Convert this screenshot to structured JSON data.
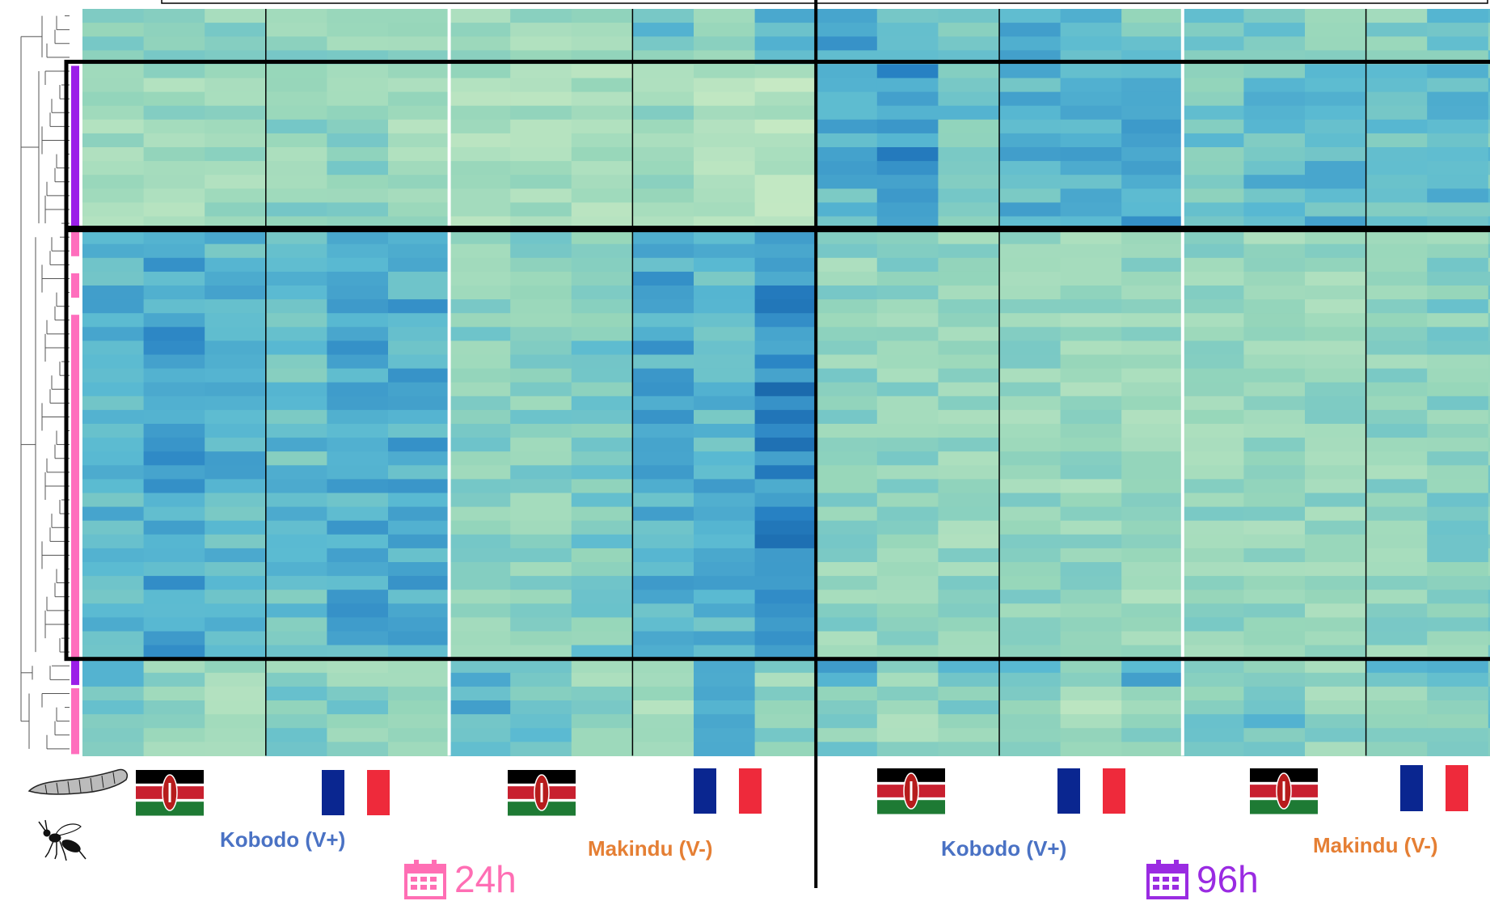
{
  "colors": {
    "kobodo": "#4a72c4",
    "makindu": "#e57f34",
    "time_24h": "#ff6eb4",
    "time_96h": "#9a2be2",
    "cluster_purple": "#9b1fe8",
    "cluster_pink": "#ff6ebd",
    "heat_low": "#bfe8bf",
    "heat_high": "#0a4a92"
  },
  "icons": {
    "host": "caterpillar-icon",
    "parasitoid": "wasp-icon",
    "flag_kenya": "kenya-flag-icon",
    "flag_france": "france-flag-icon",
    "calendar": "calendar-icon"
  },
  "labels": {
    "kobodo": "Kobodo (V+)",
    "makindu": "Makindu (V-)",
    "t24": "24h",
    "t96": "96h"
  },
  "chart_data": {
    "type": "heatmap",
    "columns": 24,
    "rows": 54,
    "column_groups": [
      {
        "time": "24h",
        "population": "Kobodo (V+)",
        "origin": "Kenya",
        "columns": [
          0,
          1,
          2
        ]
      },
      {
        "time": "24h",
        "population": "Kobodo (V+)",
        "origin": "France",
        "columns": [
          3,
          4,
          5
        ]
      },
      {
        "time": "24h",
        "population": "Makindu (V-)",
        "origin": "Kenya",
        "columns": [
          6,
          7,
          8
        ]
      },
      {
        "time": "24h",
        "population": "Makindu (V-)",
        "origin": "France",
        "columns": [
          9,
          10,
          11
        ]
      },
      {
        "time": "96h",
        "population": "Kobodo (V+)",
        "origin": "Kenya",
        "columns": [
          12,
          13,
          14
        ]
      },
      {
        "time": "96h",
        "population": "Kobodo (V+)",
        "origin": "France",
        "columns": [
          15,
          16,
          17
        ]
      },
      {
        "time": "96h",
        "population": "Makindu (V-)",
        "origin": "Kenya",
        "columns": [
          18,
          19,
          20
        ]
      },
      {
        "time": "96h",
        "population": "Makindu (V-)",
        "origin": "France",
        "columns": [
          21,
          22,
          23
        ]
      }
    ],
    "row_clusters": [
      {
        "rows": [
          0,
          3
        ],
        "bar": "none"
      },
      {
        "rows": [
          4,
          15
        ],
        "bar": "purple"
      },
      {
        "rows": [
          16,
          46
        ],
        "bar": "pink"
      },
      {
        "rows": [
          47,
          48
        ],
        "bar": "purple"
      },
      {
        "rows": [
          49,
          53
        ],
        "bar": "pink"
      }
    ],
    "value_scale": {
      "min": 0,
      "max": 1
    },
    "matrix_seed": 7,
    "cluster_levels": [
      [
        0.4,
        0.35,
        0.3,
        0.3,
        0.3,
        0.28,
        0.28,
        0.25,
        0.3,
        0.45,
        0.3,
        0.55,
        0.6,
        0.55,
        0.45,
        0.6,
        0.55,
        0.4,
        0.5,
        0.4,
        0.35,
        0.35,
        0.45,
        0.4
      ],
      [
        0.25,
        0.25,
        0.25,
        0.3,
        0.32,
        0.2,
        0.2,
        0.2,
        0.22,
        0.25,
        0.18,
        0.15,
        0.55,
        0.7,
        0.45,
        0.55,
        0.6,
        0.65,
        0.45,
        0.5,
        0.55,
        0.45,
        0.5,
        0.45
      ],
      [
        0.55,
        0.65,
        0.55,
        0.5,
        0.6,
        0.6,
        0.35,
        0.35,
        0.4,
        0.6,
        0.55,
        0.75,
        0.3,
        0.3,
        0.28,
        0.3,
        0.28,
        0.28,
        0.3,
        0.28,
        0.28,
        0.3,
        0.35,
        0.35
      ],
      [
        0.45,
        0.3,
        0.3,
        0.3,
        0.3,
        0.3,
        0.55,
        0.55,
        0.3,
        0.3,
        0.5,
        0.3,
        0.55,
        0.3,
        0.45,
        0.5,
        0.45,
        0.55,
        0.3,
        0.4,
        0.3,
        0.5,
        0.55,
        0.45
      ],
      [
        0.4,
        0.3,
        0.25,
        0.45,
        0.35,
        0.35,
        0.55,
        0.5,
        0.3,
        0.25,
        0.6,
        0.35,
        0.35,
        0.25,
        0.35,
        0.35,
        0.2,
        0.35,
        0.4,
        0.45,
        0.3,
        0.35,
        0.4,
        0.4
      ]
    ]
  }
}
